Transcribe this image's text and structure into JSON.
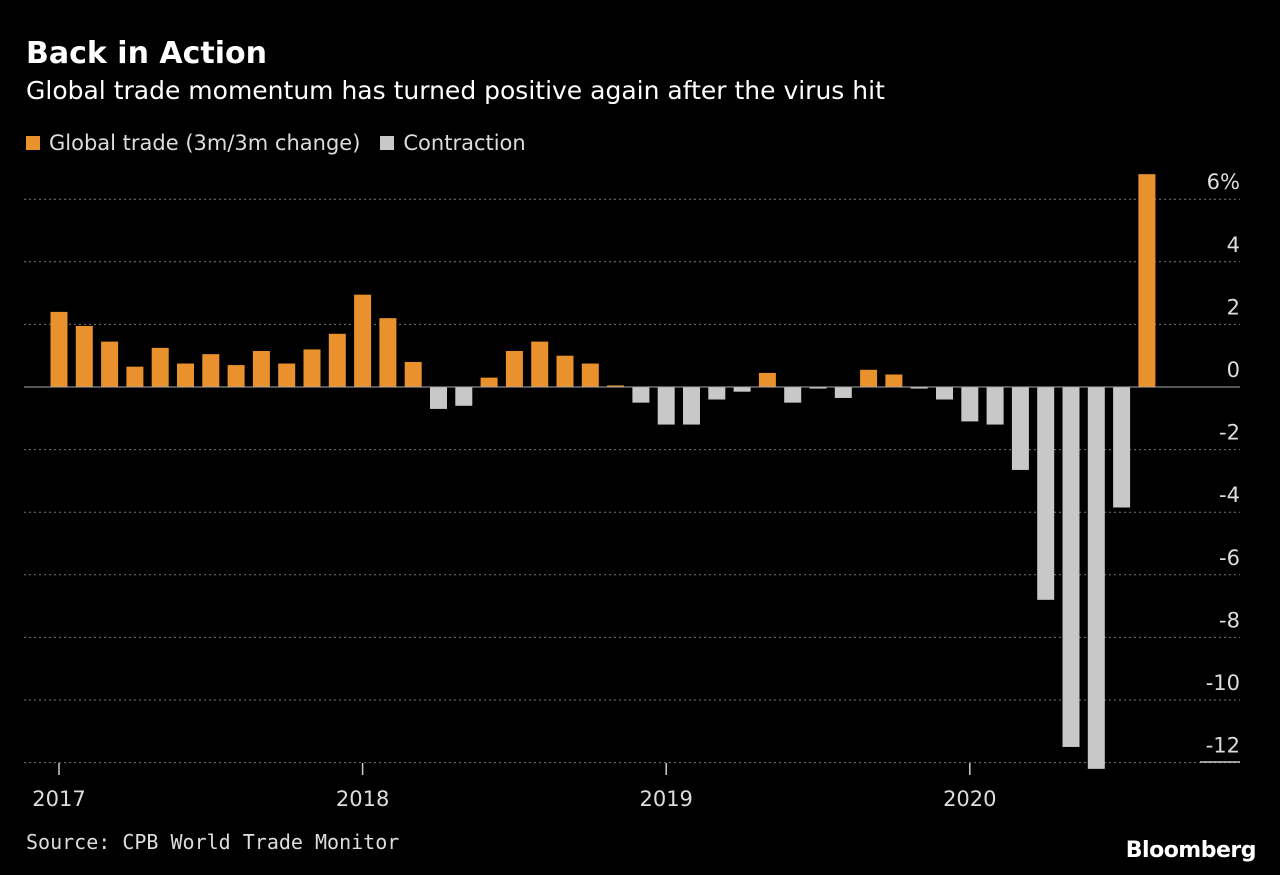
{
  "title": "Back in Action",
  "subtitle": "Global trade momentum has turned positive again after the virus hit",
  "legend": [
    {
      "label": "Global trade (3m/3m change)",
      "color": "#E8912D"
    },
    {
      "label": "Contraction",
      "color": "#C8C8C8"
    }
  ],
  "source": "Source: CPB World Trade Monitor",
  "brand": "Bloomberg",
  "chart_data": {
    "type": "bar",
    "grid": true,
    "legend_position": "top-left",
    "ylim": [
      -12.5,
      7
    ],
    "y_ticks": [
      {
        "value": 6,
        "label": "6%"
      },
      {
        "value": 4,
        "label": "4"
      },
      {
        "value": 2,
        "label": "2"
      },
      {
        "value": 0,
        "label": "0"
      },
      {
        "value": -2,
        "label": "-2"
      },
      {
        "value": -4,
        "label": "-4"
      },
      {
        "value": -6,
        "label": "-6"
      },
      {
        "value": -8,
        "label": "-8"
      },
      {
        "value": -10,
        "label": "-10"
      },
      {
        "value": -12,
        "label": "-12"
      }
    ],
    "x_ticks": [
      "2017",
      "2018",
      "2019",
      "2020"
    ],
    "categories": [
      "2017-01",
      "2017-02",
      "2017-03",
      "2017-04",
      "2017-05",
      "2017-06",
      "2017-07",
      "2017-08",
      "2017-09",
      "2017-10",
      "2017-11",
      "2017-12",
      "2018-01",
      "2018-02",
      "2018-03",
      "2018-04",
      "2018-05",
      "2018-06",
      "2018-07",
      "2018-08",
      "2018-09",
      "2018-10",
      "2018-11",
      "2018-12",
      "2019-01",
      "2019-02",
      "2019-03",
      "2019-04",
      "2019-05",
      "2019-06",
      "2019-07",
      "2019-08",
      "2019-09",
      "2019-10",
      "2019-11",
      "2019-12",
      "2020-01",
      "2020-02",
      "2020-03",
      "2020-04",
      "2020-05",
      "2020-06",
      "2020-07",
      "2020-08"
    ],
    "values": [
      2.4,
      1.95,
      1.45,
      0.65,
      1.25,
      0.75,
      1.05,
      0.7,
      1.15,
      0.75,
      1.2,
      1.7,
      2.95,
      2.2,
      0.8,
      -0.7,
      -0.6,
      0.3,
      1.15,
      1.45,
      1.0,
      0.75,
      0.05,
      -0.5,
      -1.2,
      -1.2,
      -0.4,
      -0.15,
      0.45,
      -0.5,
      -0.05,
      -0.35,
      0.55,
      0.4,
      -0.05,
      -0.4,
      -1.1,
      -1.2,
      -2.65,
      -6.8,
      -11.5,
      -12.2,
      -3.85,
      6.8
    ]
  }
}
